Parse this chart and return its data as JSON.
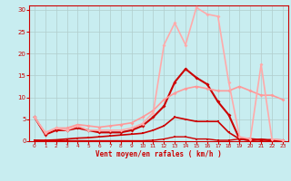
{
  "title": "",
  "xlabel": "Vent moyen/en rafales ( km/h )",
  "ylabel": "",
  "xlim": [
    -0.5,
    23.5
  ],
  "ylim": [
    0,
    31
  ],
  "yticks": [
    0,
    5,
    10,
    15,
    20,
    25,
    30
  ],
  "xticks": [
    0,
    1,
    2,
    3,
    4,
    5,
    6,
    7,
    8,
    9,
    10,
    11,
    12,
    13,
    14,
    15,
    16,
    17,
    18,
    19,
    20,
    21,
    22,
    23
  ],
  "bg_color": "#c8edf0",
  "grid_color": "#b0cccc",
  "series": [
    {
      "x": [
        0,
        1,
        2,
        3,
        4,
        5,
        6,
        7,
        8,
        9,
        10,
        11,
        12,
        13,
        14,
        15,
        16,
        17,
        18,
        19,
        20,
        21,
        22,
        23
      ],
      "y": [
        0.2,
        0.1,
        0.1,
        0.1,
        0.1,
        0.1,
        0.1,
        0.1,
        0.1,
        0.1,
        0.1,
        0.2,
        0.5,
        1.0,
        1.0,
        0.5,
        0.5,
        0.2,
        0.2,
        0.5,
        0.1,
        0.5,
        0.1,
        0.1
      ],
      "color": "#cc0000",
      "lw": 1.0,
      "marker": "s",
      "ms": 1.8
    },
    {
      "x": [
        0,
        1,
        2,
        3,
        4,
        5,
        6,
        7,
        8,
        9,
        10,
        11,
        12,
        13,
        14,
        15,
        16,
        17,
        18,
        19,
        20,
        21,
        22,
        23
      ],
      "y": [
        0.2,
        0.2,
        0.3,
        0.5,
        0.7,
        0.8,
        1.0,
        1.2,
        1.4,
        1.6,
        1.8,
        2.5,
        3.5,
        5.5,
        5.0,
        4.5,
        4.5,
        4.5,
        2.0,
        0.5,
        0.2,
        0.3,
        0.2,
        0.1
      ],
      "color": "#cc0000",
      "lw": 1.2,
      "marker": "s",
      "ms": 1.8
    },
    {
      "x": [
        0,
        1,
        2,
        3,
        4,
        5,
        6,
        7,
        8,
        9,
        10,
        11,
        12,
        13,
        14,
        15,
        16,
        17,
        18,
        19,
        20,
        21,
        22,
        23
      ],
      "y": [
        5.5,
        1.5,
        2.5,
        2.5,
        3.0,
        2.5,
        2.0,
        2.0,
        2.0,
        2.5,
        3.5,
        5.5,
        8.0,
        13.5,
        16.5,
        14.5,
        13.0,
        9.0,
        6.0,
        0.5,
        0.5,
        0.3,
        0.3,
        0.2
      ],
      "color": "#cc0000",
      "lw": 1.5,
      "marker": "D",
      "ms": 2.0
    },
    {
      "x": [
        0,
        1,
        2,
        3,
        4,
        5,
        6,
        7,
        8,
        9,
        10,
        11,
        12,
        13,
        14,
        15,
        16,
        17,
        18,
        19,
        20,
        21,
        22,
        23
      ],
      "y": [
        5.5,
        1.8,
        3.0,
        3.0,
        3.8,
        3.5,
        3.2,
        3.5,
        3.8,
        4.2,
        5.5,
        7.0,
        9.5,
        11.0,
        12.0,
        12.5,
        12.0,
        11.5,
        11.5,
        12.5,
        11.5,
        10.5,
        10.5,
        9.5
      ],
      "color": "#ff9999",
      "lw": 1.2,
      "marker": "D",
      "ms": 2.0
    },
    {
      "x": [
        0,
        1,
        2,
        3,
        4,
        5,
        6,
        7,
        8,
        9,
        10,
        11,
        12,
        13,
        14,
        15,
        16,
        17,
        18,
        19,
        20,
        21,
        22,
        23
      ],
      "y": [
        5.5,
        2.0,
        3.0,
        2.5,
        3.5,
        2.5,
        2.5,
        2.5,
        2.5,
        3.0,
        4.0,
        6.5,
        22.0,
        27.0,
        22.0,
        30.5,
        29.0,
        28.5,
        13.5,
        1.0,
        0.5,
        17.5,
        0.5,
        0.2
      ],
      "color": "#ffaaaa",
      "lw": 1.2,
      "marker": "D",
      "ms": 2.0
    }
  ]
}
